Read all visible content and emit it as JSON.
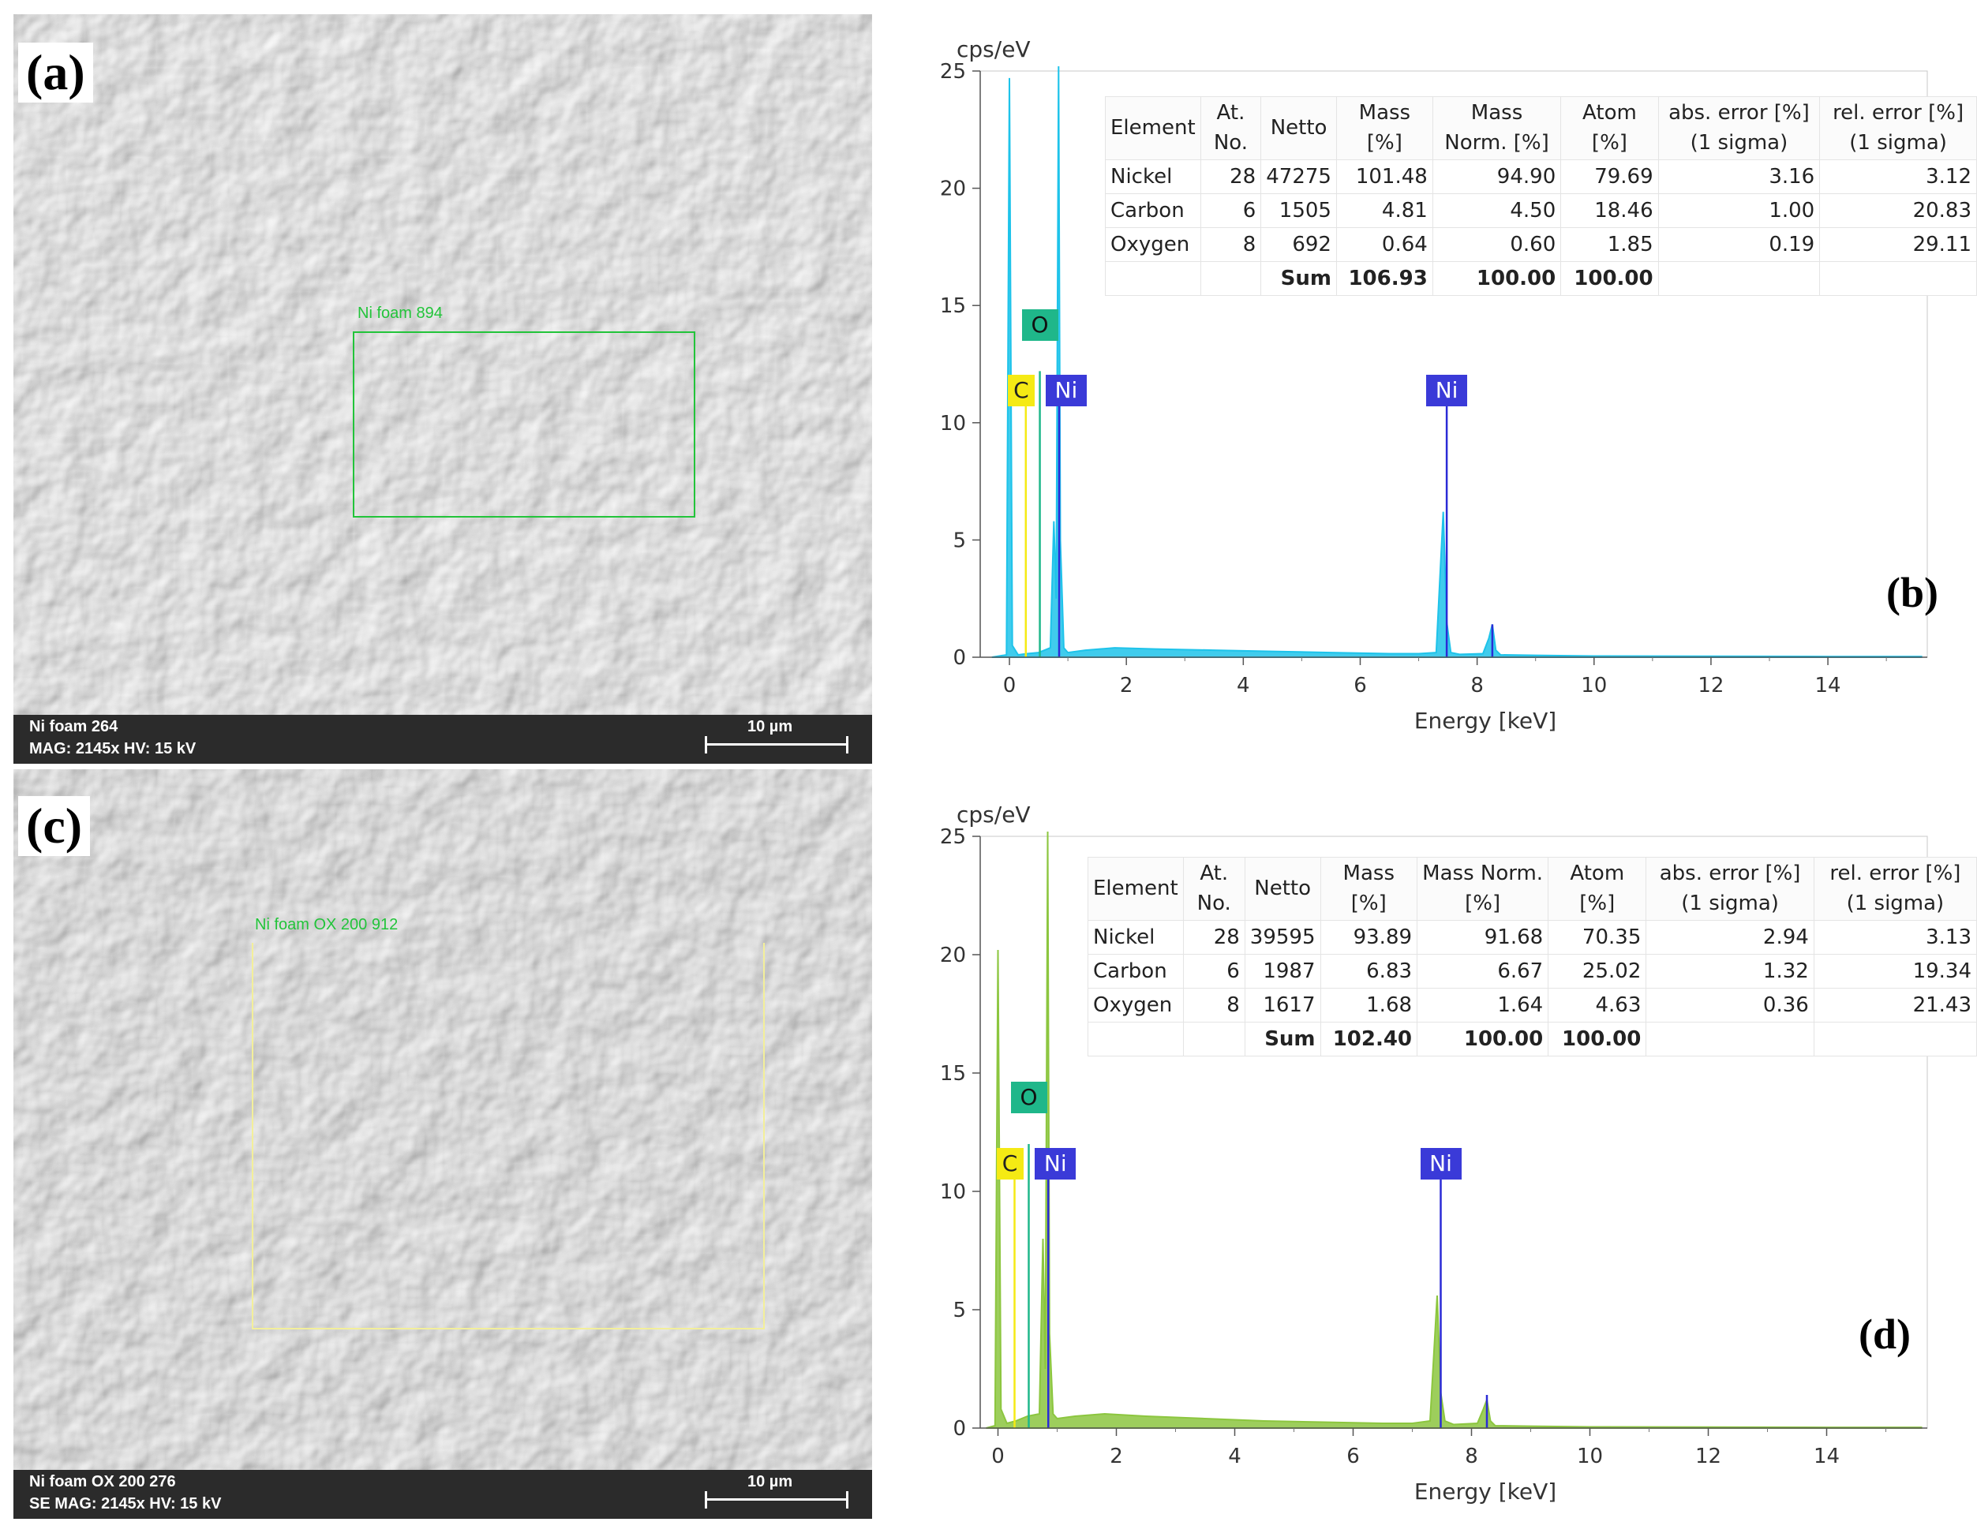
{
  "colors": {
    "spectrum_b": "#1ec3ea",
    "spectrum_d": "#8cc63f",
    "ni_line": "#2b2bd6",
    "carbon_tag": "#f5ea14",
    "oxygen_tag": "#1fb78a",
    "nickel_tag": "#3a3ad8",
    "roi_green": "#22c43a",
    "roi_yellow": "#f3ef9a"
  },
  "panel_a": {
    "letter": "(a)",
    "roi_label": "Ni foam 894",
    "footer_line1": "Ni foam 264",
    "footer_line2": "MAG: 2145x    HV: 15 kV",
    "scale_label": "10 µm"
  },
  "panel_c": {
    "letter": "(c)",
    "roi_label": "Ni foam OX 200 912",
    "footer_line1": "Ni foam OX 200 276",
    "footer_line2": "SE    MAG: 2145x    HV: 15 kV",
    "scale_label": "10 µm"
  },
  "panel_b": {
    "letter": "(b)",
    "table": {
      "headers": [
        "Element",
        "At. No.",
        "Netto",
        "Mass [%]",
        "Mass Norm. [%]",
        "Atom [%]",
        "abs. error [%] (1 sigma)",
        "rel. error [%] (1 sigma)"
      ],
      "rows": [
        [
          "Nickel",
          "28",
          "47275",
          "101.48",
          "94.90",
          "79.69",
          "3.16",
          "3.12"
        ],
        [
          "Carbon",
          "6",
          "1505",
          "4.81",
          "4.50",
          "18.46",
          "1.00",
          "20.83"
        ],
        [
          "Oxygen",
          "8",
          "692",
          "0.64",
          "0.60",
          "1.85",
          "0.19",
          "29.11"
        ]
      ],
      "sum": [
        "",
        "",
        "Sum",
        "106.93",
        "100.00",
        "100.00",
        "",
        ""
      ]
    },
    "peak_labels": {
      "c": "C",
      "o": "O",
      "ni_l": "Ni",
      "ni_k": "Ni"
    }
  },
  "panel_d": {
    "letter": "(d)",
    "table": {
      "headers": [
        "Element",
        "At. No.",
        "Netto",
        "Mass [%]",
        "Mass Norm. [%]",
        "Atom [%]",
        "abs. error [%] (1 sigma)",
        "rel. error [%] (1 sigma)"
      ],
      "rows": [
        [
          "Nickel",
          "28",
          "39595",
          "93.89",
          "91.68",
          "70.35",
          "2.94",
          "3.13"
        ],
        [
          "Carbon",
          "6",
          "1987",
          "6.83",
          "6.67",
          "25.02",
          "1.32",
          "19.34"
        ],
        [
          "Oxygen",
          "8",
          "1617",
          "1.68",
          "1.64",
          "4.63",
          "0.36",
          "21.43"
        ]
      ],
      "sum": [
        "",
        "",
        "Sum",
        "102.40",
        "100.00",
        "100.00",
        "",
        ""
      ]
    },
    "peak_labels": {
      "c": "C",
      "o": "O",
      "ni_l": "Ni",
      "ni_k": "Ni"
    }
  },
  "chart_data": [
    {
      "type": "area",
      "panel": "b",
      "ylabel": "cps/eV",
      "xlabel": "Energy [keV]",
      "xlim": [
        -0.5,
        15.7
      ],
      "ylim": [
        0,
        25
      ],
      "xticks": [
        0,
        2,
        4,
        6,
        8,
        10,
        12,
        14
      ],
      "yticks": [
        0,
        5,
        10,
        15,
        20,
        25
      ],
      "series": [
        {
          "x": [
            -0.3,
            -0.05,
            0.0,
            0.05,
            0.15,
            0.3,
            0.5,
            0.7,
            0.76,
            0.8,
            0.84,
            0.87,
            0.93,
            1.0,
            1.3,
            1.8,
            2.5,
            3.5,
            4.5,
            5.5,
            6.5,
            7.0,
            7.3,
            7.42,
            7.48,
            7.55,
            7.7,
            8.1,
            8.2,
            8.26,
            8.32,
            8.4,
            9.0,
            10.0,
            12.0,
            14.0,
            15.6
          ],
          "y": [
            0,
            0.1,
            24.7,
            0.5,
            0.1,
            0.15,
            0.2,
            0.4,
            5.8,
            2.5,
            26.0,
            5.0,
            0.4,
            0.2,
            0.3,
            0.4,
            0.35,
            0.3,
            0.25,
            0.2,
            0.15,
            0.15,
            0.2,
            6.2,
            1.5,
            0.2,
            0.12,
            0.15,
            0.8,
            1.4,
            0.3,
            0.1,
            0.08,
            0.05,
            0.04,
            0.03,
            0.03
          ]
        }
      ],
      "element_lines": [
        {
          "label": "C",
          "x": 0.28,
          "y": 10.7
        },
        {
          "label": "O",
          "x": 0.52,
          "y": 12.2
        },
        {
          "label": "Ni",
          "x": 0.85,
          "y": 10.7
        },
        {
          "label": "Ni",
          "x": 7.48,
          "y": 10.7
        },
        {
          "label": "",
          "x": 8.26,
          "y": 1.4
        }
      ]
    },
    {
      "type": "area",
      "panel": "d",
      "ylabel": "cps/eV",
      "xlabel": "Energy [keV]",
      "xlim": [
        -0.3,
        15.7
      ],
      "ylim": [
        0,
        25
      ],
      "xticks": [
        0,
        2,
        4,
        6,
        8,
        10,
        12,
        14
      ],
      "yticks": [
        0,
        5,
        10,
        15,
        20,
        25
      ],
      "series": [
        {
          "x": [
            -0.2,
            -0.05,
            0.0,
            0.05,
            0.15,
            0.3,
            0.5,
            0.7,
            0.76,
            0.8,
            0.84,
            0.87,
            0.93,
            1.0,
            1.3,
            1.8,
            2.5,
            3.5,
            4.5,
            5.5,
            6.5,
            7.0,
            7.3,
            7.42,
            7.48,
            7.55,
            7.7,
            8.1,
            8.2,
            8.26,
            8.32,
            8.4,
            9.0,
            10.0,
            12.0,
            14.0,
            15.6
          ],
          "y": [
            0,
            0.1,
            20.2,
            0.8,
            0.2,
            0.3,
            0.5,
            0.6,
            8.0,
            2.5,
            26.0,
            4.0,
            0.6,
            0.4,
            0.5,
            0.6,
            0.5,
            0.4,
            0.3,
            0.25,
            0.2,
            0.2,
            0.3,
            5.6,
            1.5,
            0.3,
            0.15,
            0.2,
            0.8,
            1.2,
            0.3,
            0.1,
            0.08,
            0.05,
            0.04,
            0.03,
            0.03
          ]
        }
      ],
      "element_lines": [
        {
          "label": "C",
          "x": 0.28,
          "y": 10.5
        },
        {
          "label": "O",
          "x": 0.52,
          "y": 12.0
        },
        {
          "label": "Ni",
          "x": 0.85,
          "y": 10.5
        },
        {
          "label": "Ni",
          "x": 7.48,
          "y": 10.5
        },
        {
          "label": "",
          "x": 8.26,
          "y": 1.4
        }
      ]
    }
  ]
}
